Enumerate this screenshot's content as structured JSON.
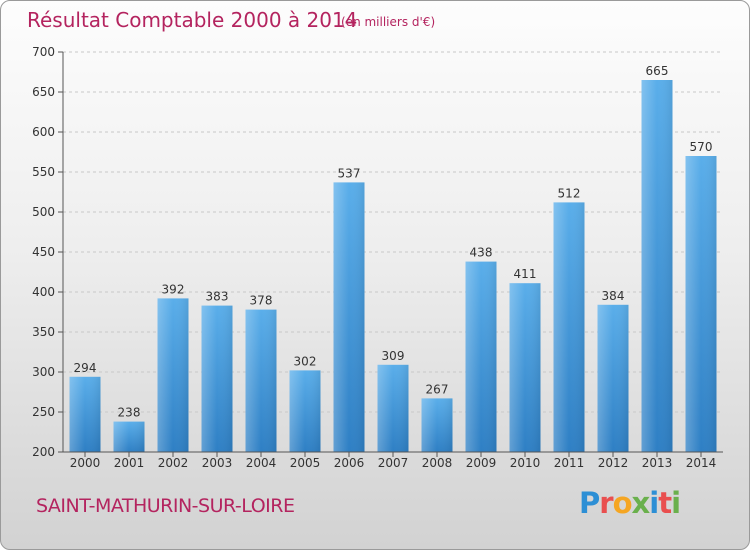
{
  "chart_data": {
    "type": "bar",
    "title": "Résultat Comptable 2000 à 2014",
    "subtitle": "(en milliers d'€)",
    "categories": [
      "2000",
      "2001",
      "2002",
      "2003",
      "2004",
      "2005",
      "2006",
      "2007",
      "2008",
      "2009",
      "2010",
      "2011",
      "2012",
      "2013",
      "2014"
    ],
    "values": [
      294,
      238,
      392,
      383,
      378,
      302,
      537,
      309,
      267,
      438,
      411,
      512,
      384,
      665,
      570
    ],
    "ylim": [
      200,
      700
    ],
    "yticks": [
      200,
      250,
      300,
      350,
      400,
      450,
      500,
      550,
      600,
      650,
      700
    ],
    "grid": true,
    "bar_color": "#4a9de0"
  },
  "location": "SAINT-MATHURIN-SUR-LOIRE",
  "logo": {
    "text": "Proxiti",
    "colors": [
      "#2d8fd5",
      "#e94f4f",
      "#f5a623",
      "#6ab04c",
      "#2d8fd5",
      "#e94f4f",
      "#6ab04c"
    ]
  }
}
